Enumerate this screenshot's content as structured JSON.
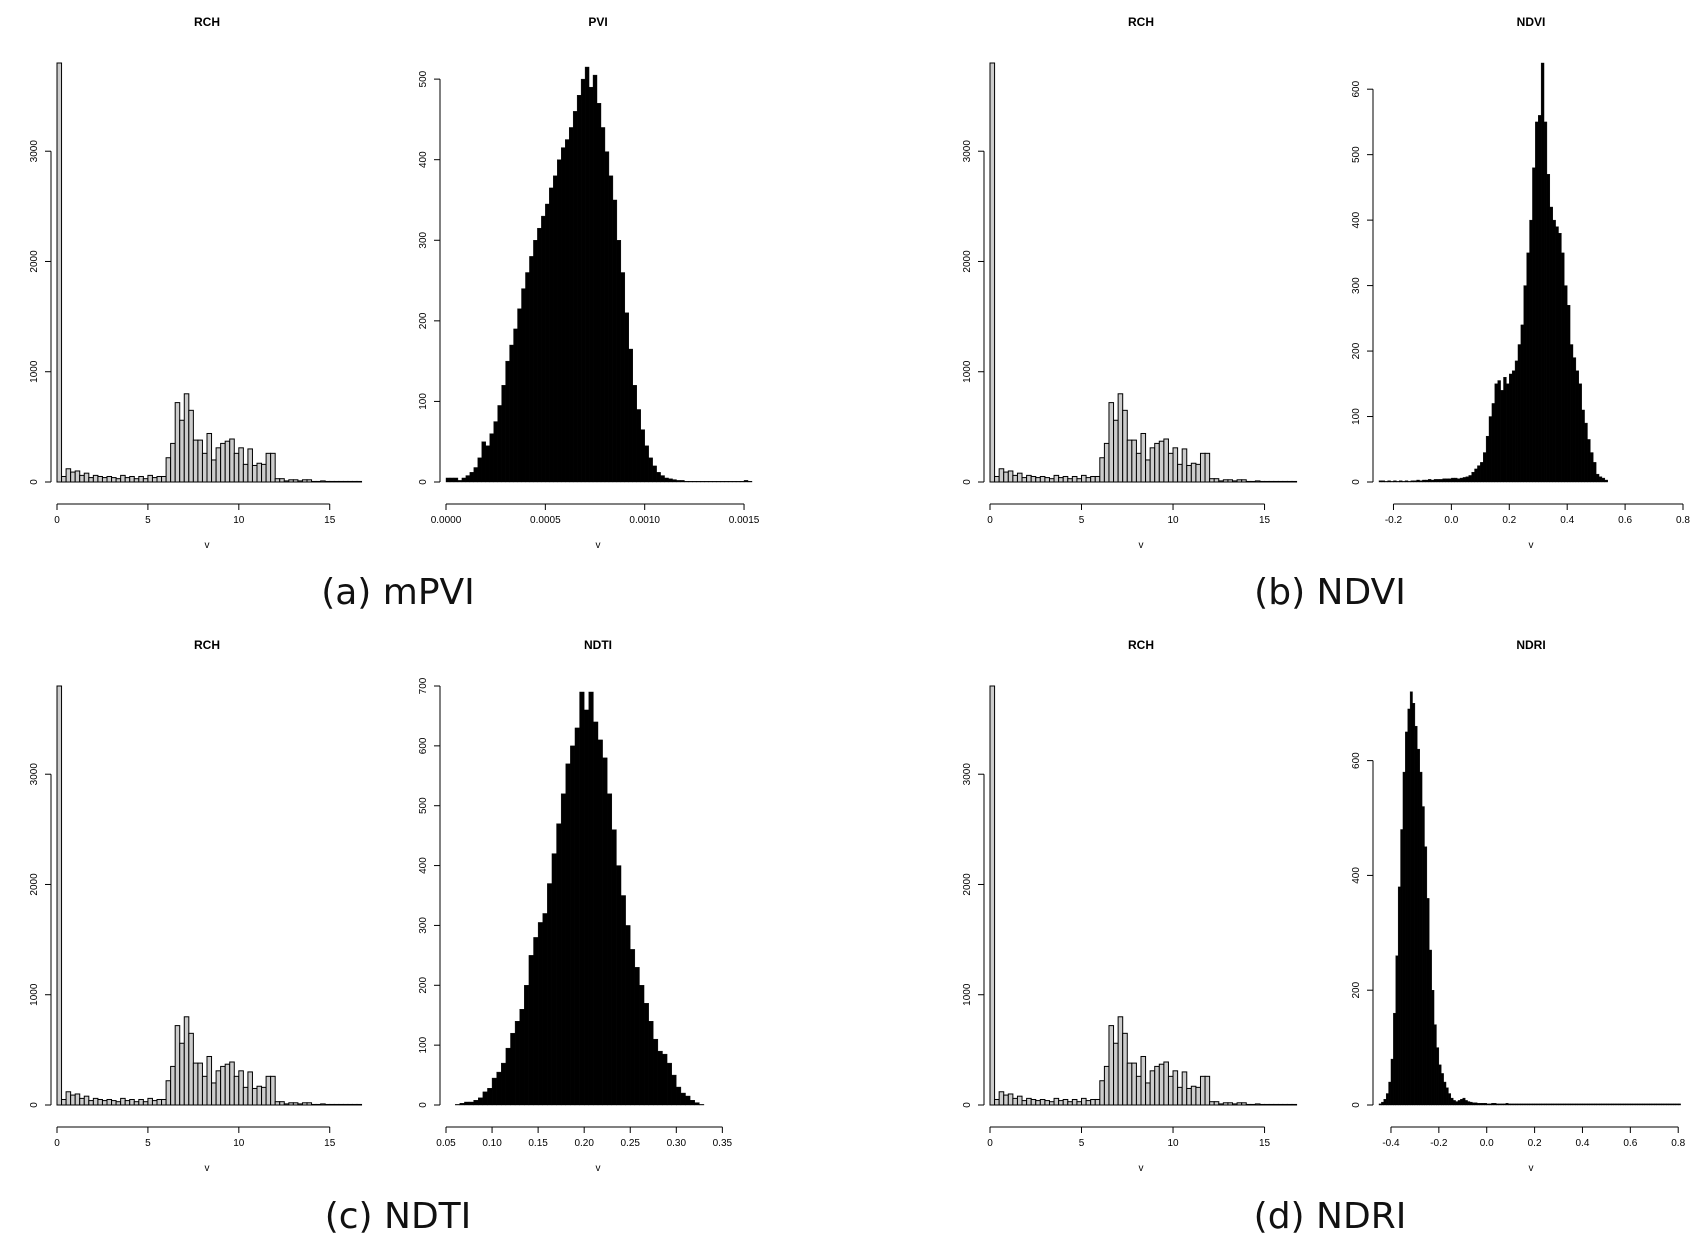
{
  "captions": [
    "(a) mPVI",
    "(b) NDVI",
    "(c) NDTI",
    "(d) NDRI"
  ],
  "chart_data": [
    {
      "type": "bar",
      "title": "RCH",
      "xlabel": "v",
      "x_ticks": [
        0,
        5,
        10,
        15
      ],
      "y_ticks": [
        0,
        1000,
        2000,
        3000
      ],
      "xlim": [
        0,
        16.5
      ],
      "ylim": [
        0,
        3800
      ],
      "bins": {
        "start": 0,
        "width": 0.25,
        "counts": [
          3800,
          50,
          120,
          90,
          100,
          60,
          80,
          40,
          60,
          50,
          40,
          50,
          40,
          30,
          60,
          40,
          50,
          30,
          50,
          30,
          60,
          40,
          50,
          50,
          220,
          350,
          720,
          560,
          800,
          650,
          380,
          380,
          260,
          440,
          200,
          310,
          350,
          370,
          390,
          260,
          310,
          160,
          300,
          150,
          170,
          160,
          260,
          260,
          30,
          30,
          10,
          20,
          20,
          10,
          20,
          20,
          5,
          5,
          10,
          5,
          5,
          5,
          5,
          5,
          5,
          5,
          5
        ]
      },
      "bar_fill": "#cccccc"
    },
    {
      "type": "bar",
      "title": "PVI",
      "xlabel": "v",
      "x_ticks": [
        "0.0000",
        "0.0005",
        "0.0010",
        "0.0015"
      ],
      "y_ticks": [
        0,
        100,
        200,
        300,
        400,
        500
      ],
      "xlim": [
        0,
        0.00153
      ],
      "ylim": [
        0,
        520
      ],
      "bins": {
        "start": 0,
        "width": 2e-05,
        "counts": [
          5,
          5,
          5,
          2,
          5,
          8,
          12,
          18,
          30,
          50,
          45,
          60,
          75,
          95,
          120,
          150,
          170,
          190,
          215,
          240,
          260,
          280,
          300,
          315,
          330,
          345,
          365,
          380,
          400,
          415,
          425,
          440,
          460,
          480,
          500,
          515,
          490,
          505,
          470,
          440,
          410,
          380,
          350,
          300,
          260,
          210,
          165,
          120,
          90,
          65,
          45,
          30,
          20,
          12,
          8,
          5,
          4,
          3,
          2,
          2,
          1,
          1,
          1,
          1,
          1,
          1,
          1,
          1,
          1,
          1,
          1,
          1,
          1,
          1,
          1,
          2,
          1
        ]
      },
      "bar_fill": "#000000"
    },
    {
      "type": "bar",
      "title": "RCH",
      "xlabel": "v",
      "x_ticks": [
        0,
        5,
        10,
        15
      ],
      "y_ticks": [
        0,
        1000,
        2000,
        3000
      ],
      "xlim": [
        0,
        16.5
      ],
      "ylim": [
        0,
        3800
      ],
      "bins": {
        "start": 0,
        "width": 0.25,
        "counts": [
          3800,
          50,
          120,
          90,
          100,
          60,
          80,
          40,
          60,
          50,
          40,
          50,
          40,
          30,
          60,
          40,
          50,
          30,
          50,
          30,
          60,
          40,
          50,
          50,
          220,
          350,
          720,
          560,
          800,
          650,
          380,
          380,
          260,
          440,
          200,
          310,
          350,
          370,
          390,
          260,
          310,
          160,
          300,
          150,
          170,
          160,
          260,
          260,
          30,
          30,
          10,
          20,
          20,
          10,
          20,
          20,
          5,
          5,
          10,
          5,
          5,
          5,
          5,
          5,
          5,
          5,
          5
        ]
      },
      "bar_fill": "#cccccc"
    },
    {
      "type": "bar",
      "title": "NDVI",
      "xlabel": "v",
      "x_ticks": [
        "-0.2",
        "0.0",
        "0.2",
        "0.4",
        "0.6",
        "0.8"
      ],
      "y_ticks": [
        0,
        100,
        200,
        300,
        400,
        500,
        600
      ],
      "xlim": [
        -0.25,
        0.8
      ],
      "ylim": [
        0,
        640
      ],
      "bins": {
        "start": -0.25,
        "width": 0.01,
        "counts": [
          2,
          2,
          1,
          2,
          1,
          2,
          1,
          2,
          1,
          2,
          1,
          2,
          2,
          3,
          2,
          3,
          3,
          4,
          3,
          4,
          4,
          4,
          5,
          5,
          5,
          6,
          6,
          5,
          6,
          7,
          8,
          10,
          15,
          20,
          25,
          30,
          45,
          70,
          100,
          120,
          150,
          155,
          140,
          160,
          150,
          165,
          170,
          185,
          210,
          240,
          300,
          350,
          400,
          480,
          550,
          560,
          640,
          550,
          470,
          420,
          400,
          390,
          380,
          350,
          300,
          270,
          210,
          190,
          170,
          150,
          110,
          90,
          65,
          45,
          30,
          12,
          8,
          6,
          3
        ]
      },
      "bar_fill": "#000000"
    },
    {
      "type": "bar",
      "title": "RCH",
      "xlabel": "v",
      "x_ticks": [
        0,
        5,
        10,
        15
      ],
      "y_ticks": [
        0,
        1000,
        2000,
        3000
      ],
      "xlim": [
        0,
        16.5
      ],
      "ylim": [
        0,
        3800
      ],
      "bins": {
        "start": 0,
        "width": 0.25,
        "counts": [
          3800,
          50,
          120,
          90,
          100,
          60,
          80,
          40,
          60,
          50,
          40,
          50,
          40,
          30,
          60,
          40,
          50,
          30,
          50,
          30,
          60,
          40,
          50,
          50,
          220,
          350,
          720,
          560,
          800,
          650,
          380,
          380,
          260,
          440,
          200,
          310,
          350,
          370,
          390,
          260,
          310,
          160,
          300,
          150,
          170,
          160,
          260,
          260,
          30,
          30,
          10,
          20,
          20,
          10,
          20,
          20,
          5,
          5,
          10,
          5,
          5,
          5,
          5,
          5,
          5,
          5,
          5
        ]
      },
      "bar_fill": "#cccccc"
    },
    {
      "type": "bar",
      "title": "NDTI",
      "xlabel": "v",
      "x_ticks": [
        "0.05",
        "0.10",
        "0.15",
        "0.20",
        "0.25",
        "0.30",
        "0.35"
      ],
      "y_ticks": [
        0,
        100,
        200,
        300,
        400,
        500,
        600,
        700
      ],
      "xlim": [
        0.05,
        0.38
      ],
      "ylim": [
        0,
        700
      ],
      "bins": {
        "start": 0.06,
        "width": 0.005,
        "counts": [
          1,
          3,
          5,
          5,
          8,
          12,
          22,
          28,
          45,
          55,
          70,
          95,
          120,
          140,
          160,
          200,
          250,
          280,
          305,
          320,
          370,
          420,
          470,
          520,
          570,
          600,
          630,
          690,
          660,
          690,
          640,
          610,
          580,
          520,
          460,
          400,
          350,
          300,
          260,
          230,
          200,
          170,
          140,
          110,
          90,
          85,
          70,
          50,
          30,
          20,
          15,
          8,
          4,
          1
        ]
      },
      "bar_fill": "#000000"
    },
    {
      "type": "bar",
      "title": "RCH",
      "xlabel": "v",
      "x_ticks": [
        0,
        5,
        10,
        15
      ],
      "y_ticks": [
        0,
        1000,
        2000,
        3000
      ],
      "xlim": [
        0,
        16.5
      ],
      "ylim": [
        0,
        3800
      ],
      "bins": {
        "start": 0,
        "width": 0.25,
        "counts": [
          3800,
          50,
          120,
          90,
          100,
          60,
          80,
          40,
          60,
          50,
          40,
          50,
          40,
          30,
          60,
          40,
          50,
          30,
          50,
          30,
          60,
          40,
          50,
          50,
          220,
          350,
          720,
          560,
          800,
          650,
          380,
          380,
          260,
          440,
          200,
          310,
          350,
          370,
          390,
          260,
          310,
          160,
          300,
          150,
          170,
          160,
          260,
          260,
          30,
          30,
          10,
          20,
          20,
          10,
          20,
          20,
          5,
          5,
          10,
          5,
          5,
          5,
          5,
          5,
          5,
          5,
          5
        ]
      },
      "bar_fill": "#cccccc"
    },
    {
      "type": "bar",
      "title": "NDRI",
      "xlabel": "v",
      "x_ticks": [
        "-0.4",
        "-0.2",
        "0.0",
        "0.2",
        "0.4",
        "0.6",
        "0.8"
      ],
      "y_ticks": [
        0,
        200,
        400,
        600
      ],
      "xlim": [
        -0.45,
        0.82
      ],
      "ylim": [
        0,
        730
      ],
      "bins": {
        "start": -0.45,
        "width": 0.01,
        "counts": [
          2,
          5,
          10,
          20,
          40,
          80,
          160,
          260,
          380,
          480,
          580,
          650,
          690,
          720,
          700,
          660,
          620,
          580,
          520,
          450,
          360,
          270,
          200,
          140,
          100,
          70,
          55,
          40,
          30,
          20,
          12,
          8,
          6,
          8,
          10,
          12,
          8,
          6,
          5,
          4,
          4,
          3,
          3,
          3,
          3,
          2,
          2,
          3,
          3,
          2,
          2,
          2,
          2,
          3,
          2,
          2,
          2,
          2,
          2,
          2,
          2,
          2,
          2,
          2,
          2,
          2,
          2,
          2,
          2,
          2,
          2,
          2,
          2,
          2,
          2,
          2,
          2,
          2,
          2,
          2,
          2,
          2,
          2,
          2,
          2,
          2,
          2,
          2,
          2,
          2,
          2,
          2,
          2,
          2,
          2,
          2,
          2,
          2,
          2,
          2,
          2,
          2,
          2,
          2,
          2,
          2,
          2,
          2,
          2,
          2,
          2,
          2,
          2,
          2,
          2,
          2,
          2,
          2,
          2,
          2,
          2,
          2,
          2,
          2,
          2,
          2
        ]
      },
      "bar_fill": "#000000"
    }
  ]
}
